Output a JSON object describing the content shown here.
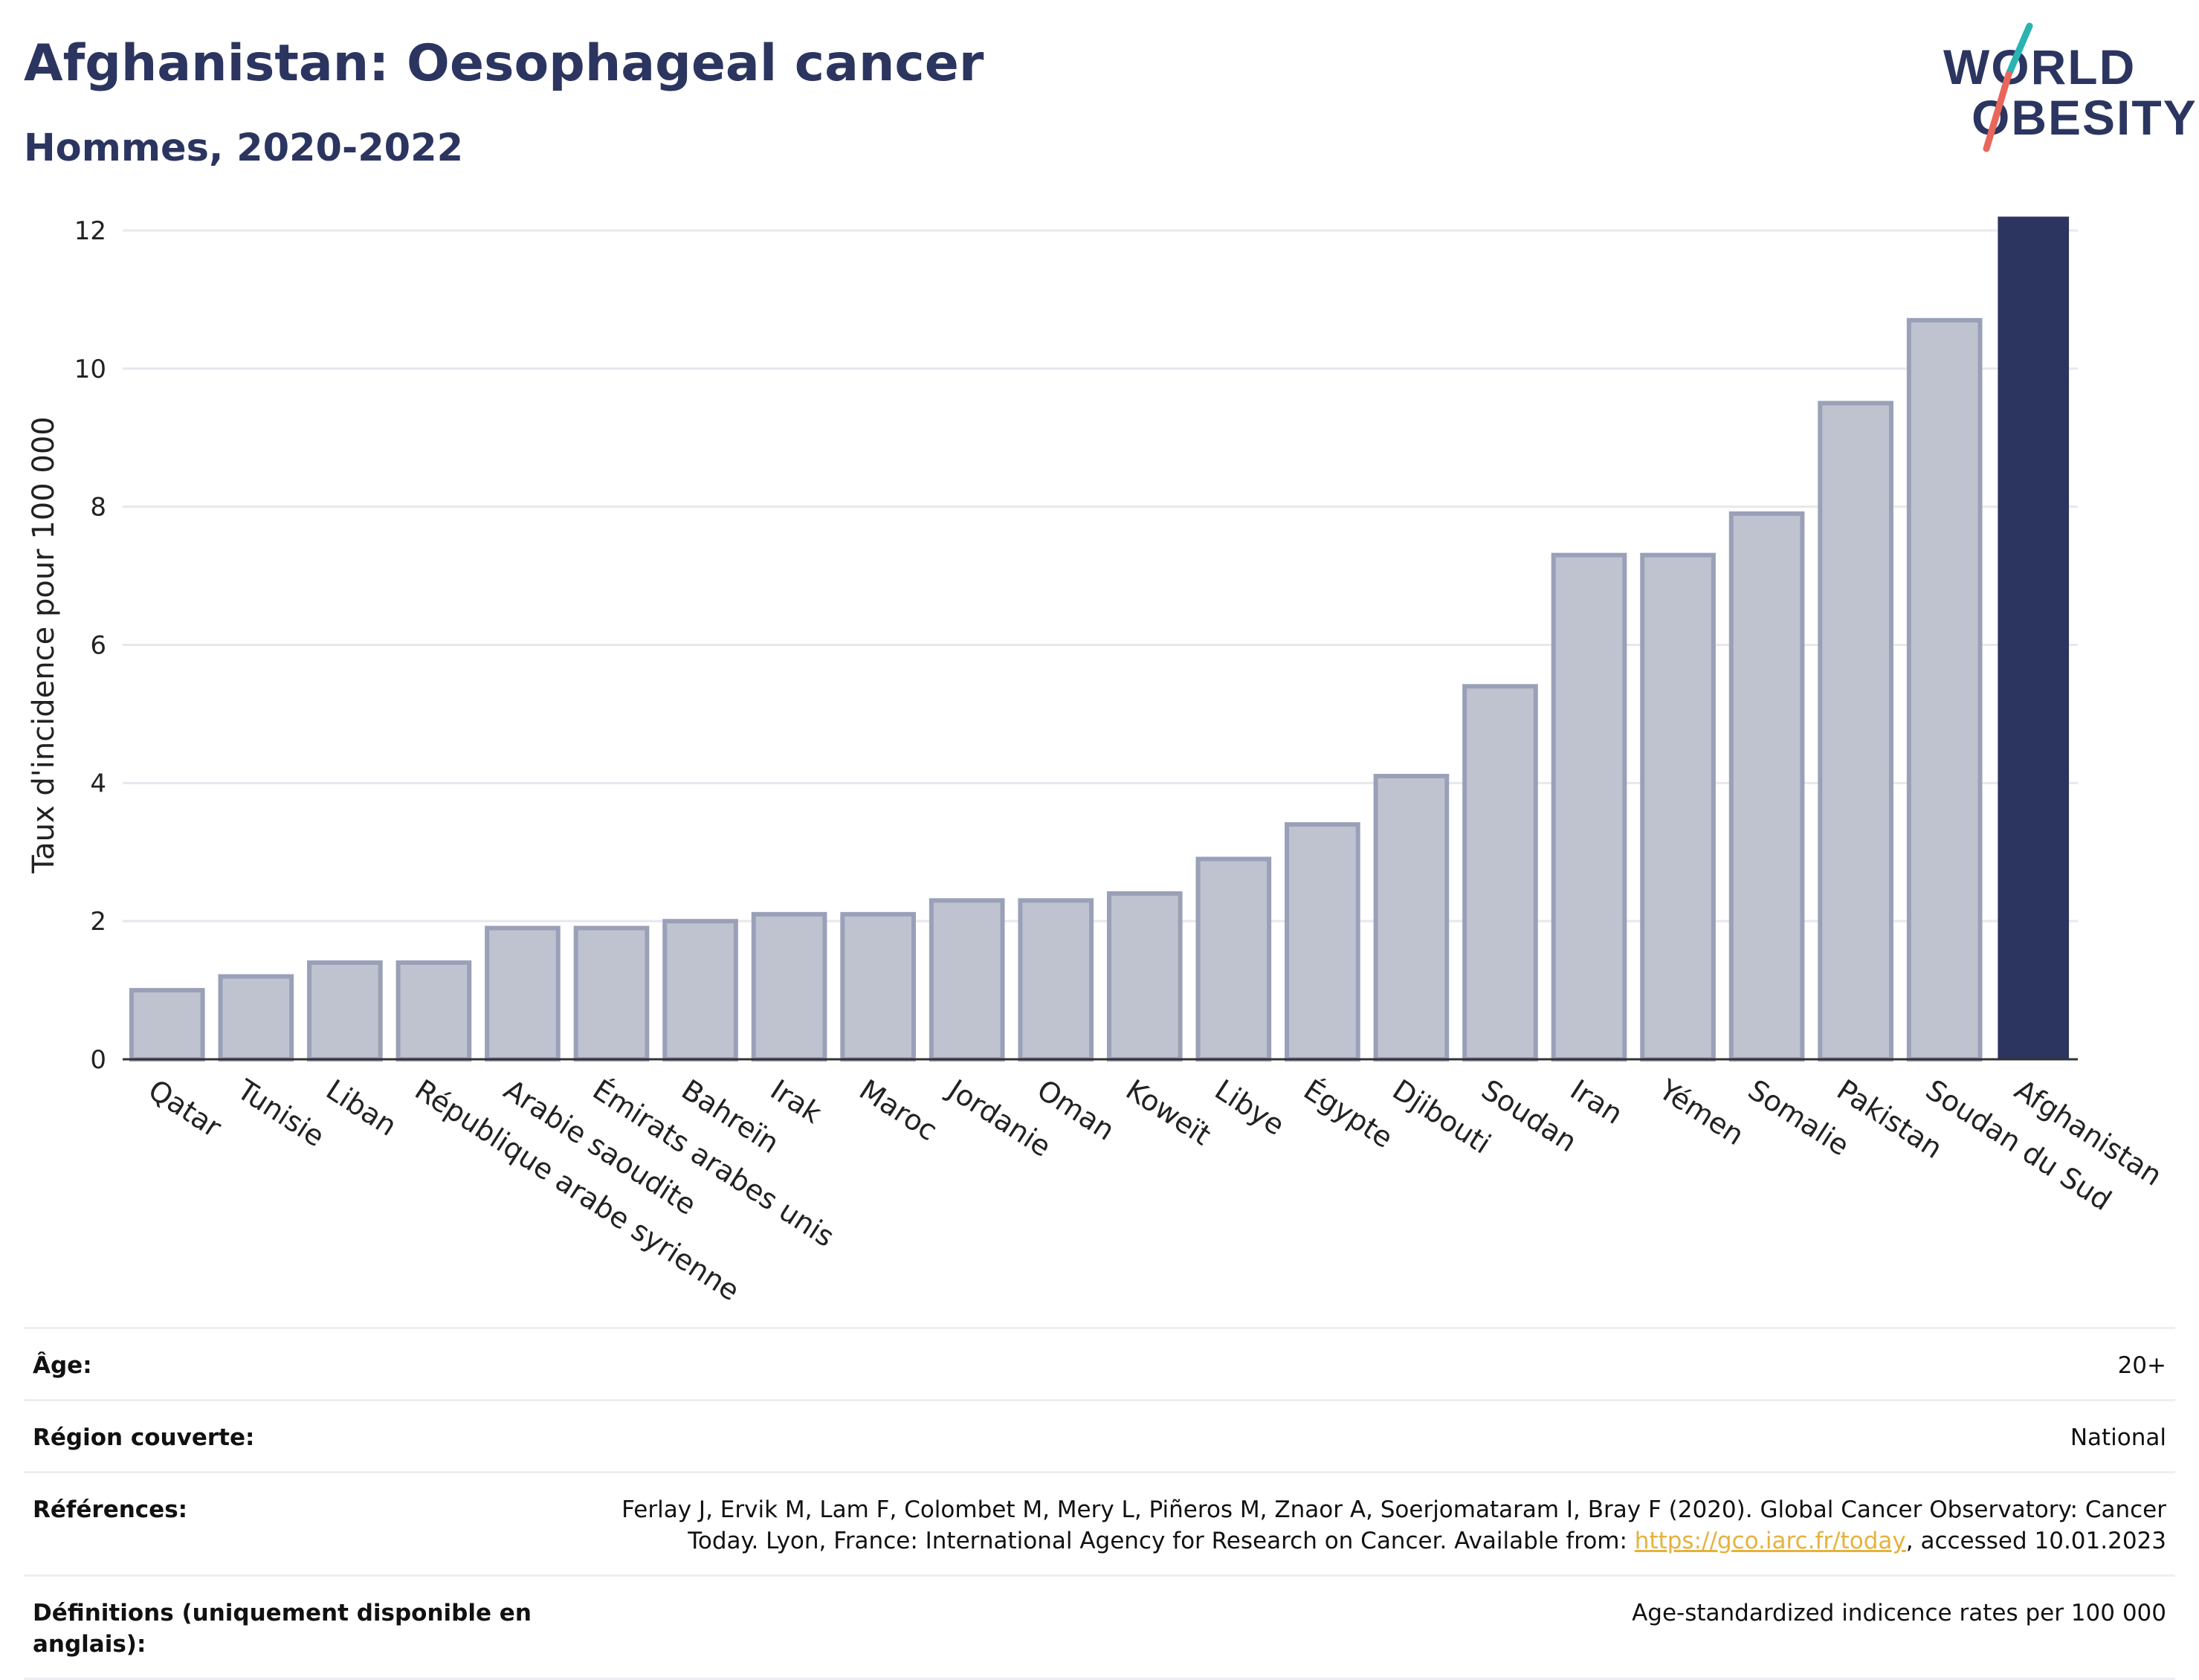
{
  "header": {
    "title": "Afghanistan: Oesophageal cancer",
    "subtitle": "Hommes, 2020-2022"
  },
  "logo": {
    "line1": "WORLD",
    "line2": "OBESITY",
    "accent_colors": [
      "#2bb3b1",
      "#e8675a"
    ]
  },
  "colors": {
    "highlight_bar": "#2b3560",
    "other_bar_fill": "#bfc3d0",
    "other_bar_stroke": "#9aa0b8",
    "title": "#2b3560",
    "link": "#e6b23c"
  },
  "chart_data": {
    "type": "bar",
    "ylabel": "Taux d'incidence pour 100 000",
    "ylim": [
      0,
      12
    ],
    "yticks": [
      0,
      2,
      4,
      6,
      8,
      10,
      12
    ],
    "grid": true,
    "highlight": "Afghanistan",
    "categories": [
      "Qatar",
      "Tunisie",
      "Liban",
      "République arabe syrienne",
      "Arabie saoudite",
      "Émirats arabes unis",
      "Bahreïn",
      "Irak",
      "Maroc",
      "Jordanie",
      "Oman",
      "Koweït",
      "Libye",
      "Égypte",
      "Djibouti",
      "Soudan",
      "Iran",
      "Yémen",
      "Somalie",
      "Pakistan",
      "Soudan du Sud",
      "Afghanistan"
    ],
    "values": [
      1.0,
      1.2,
      1.4,
      1.4,
      1.9,
      1.9,
      2.0,
      2.1,
      2.1,
      2.3,
      2.3,
      2.4,
      2.9,
      3.4,
      4.1,
      5.4,
      7.3,
      7.3,
      7.9,
      9.5,
      10.7,
      12.2
    ]
  },
  "info": {
    "age_label": "Âge:",
    "age_value": "20+",
    "region_label": "Région couverte:",
    "region_value": "National",
    "refs_label": "Références:",
    "refs_text_before": "Ferlay J, Ervik M, Lam F, Colombet M, Mery L, Piñeros M, Znaor A, Soerjomataram I, Bray F (2020). Global Cancer Observatory: Cancer Today. Lyon, France: International Agency for Research on Cancer. Available from: ",
    "refs_link": "https://gco.iarc.fr/today",
    "refs_text_after": ", accessed 10.01.2023",
    "defs_label": "Définitions (uniquement disponible en anglais):",
    "defs_value": "Age-standardized indicence rates per 100 000"
  }
}
